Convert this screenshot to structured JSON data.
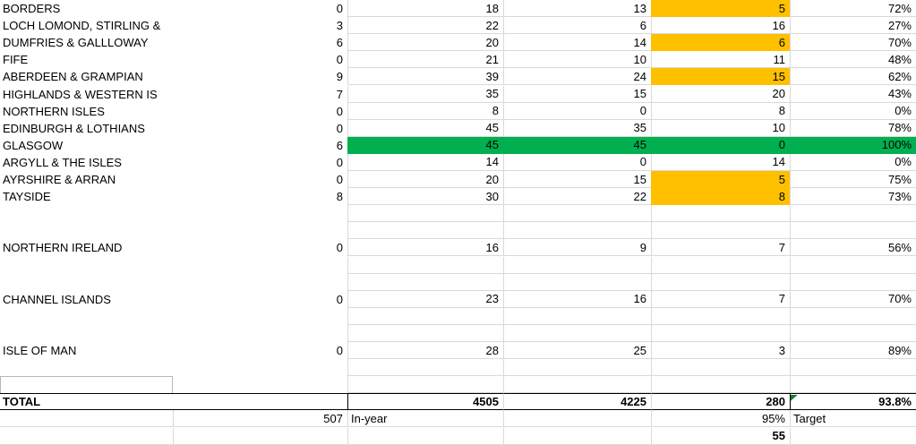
{
  "colors": {
    "orange_fill": "#FFC000",
    "green_fill": "#00B050",
    "triangle_green": "#107C41",
    "gridline": "#d9d9d9"
  },
  "grid": {
    "row_height": 19.1,
    "visible_rows": 26
  },
  "table": {
    "rows": [
      {
        "label": "BORDERS",
        "values": [
          "0",
          "18",
          "13",
          "5",
          "72%"
        ],
        "fills": [
          "",
          "",
          "",
          "orange",
          ""
        ]
      },
      {
        "label": "LOCH LOMOND, STIRLING &",
        "values": [
          "3",
          "22",
          "6",
          "16",
          "27%"
        ],
        "fills": [
          "",
          "",
          "",
          "",
          ""
        ]
      },
      {
        "label": "DUMFRIES & GALLLOWAY",
        "values": [
          "6",
          "20",
          "14",
          "6",
          "70%"
        ],
        "fills": [
          "",
          "",
          "",
          "orange",
          ""
        ]
      },
      {
        "label": "FIFE",
        "values": [
          "0",
          "21",
          "10",
          "11",
          "48%"
        ],
        "fills": [
          "",
          "",
          "",
          "",
          ""
        ]
      },
      {
        "label": "ABERDEEN & GRAMPIAN",
        "values": [
          "9",
          "39",
          "24",
          "15",
          "62%"
        ],
        "fills": [
          "",
          "",
          "",
          "orange",
          ""
        ]
      },
      {
        "label": "HIGHLANDS & WESTERN IS",
        "values": [
          "7",
          "35",
          "15",
          "20",
          "43%"
        ],
        "fills": [
          "",
          "",
          "",
          "",
          ""
        ]
      },
      {
        "label": "NORTHERN ISLES",
        "values": [
          "0",
          "8",
          "0",
          "8",
          "0%"
        ],
        "fills": [
          "",
          "",
          "",
          "",
          ""
        ]
      },
      {
        "label": "EDINBURGH & LOTHIANS",
        "values": [
          "0",
          "45",
          "35",
          "10",
          "78%"
        ],
        "fills": [
          "",
          "",
          "",
          "",
          ""
        ]
      },
      {
        "label": "GLASGOW",
        "values": [
          "6",
          "45",
          "45",
          "0",
          "100%"
        ],
        "fills": [
          "",
          "green",
          "green",
          "green",
          "green"
        ]
      },
      {
        "label": "ARGYLL & THE ISLES",
        "values": [
          "0",
          "14",
          "0",
          "14",
          "0%"
        ],
        "fills": [
          "",
          "",
          "",
          "",
          ""
        ]
      },
      {
        "label": "AYRSHIRE & ARRAN",
        "values": [
          "0",
          "20",
          "15",
          "5",
          "75%"
        ],
        "fills": [
          "",
          "",
          "",
          "orange",
          ""
        ]
      },
      {
        "label": "TAYSIDE",
        "values": [
          "8",
          "30",
          "22",
          "8",
          "73%"
        ],
        "fills": [
          "",
          "",
          "",
          "orange",
          ""
        ]
      },
      {
        "label": "",
        "values": [
          "",
          "",
          "",
          "",
          ""
        ],
        "fills": [
          "",
          "",
          "",
          "",
          ""
        ]
      },
      {
        "label": "",
        "values": [
          "",
          "",
          "",
          "",
          ""
        ],
        "fills": [
          "",
          "",
          "",
          "",
          ""
        ]
      },
      {
        "label": "NORTHERN IRELAND",
        "values": [
          "0",
          "16",
          "9",
          "7",
          "56%"
        ],
        "fills": [
          "",
          "",
          "",
          "",
          ""
        ]
      },
      {
        "label": "",
        "values": [
          "",
          "",
          "",
          "",
          ""
        ],
        "fills": [
          "",
          "",
          "",
          "",
          ""
        ]
      },
      {
        "label": "",
        "values": [
          "",
          "",
          "",
          "",
          ""
        ],
        "fills": [
          "",
          "",
          "",
          "",
          ""
        ]
      },
      {
        "label": "CHANNEL ISLANDS",
        "values": [
          "0",
          "23",
          "16",
          "7",
          "70%"
        ],
        "fills": [
          "",
          "",
          "",
          "",
          ""
        ]
      },
      {
        "label": "",
        "values": [
          "",
          "",
          "",
          "",
          ""
        ],
        "fills": [
          "",
          "",
          "",
          "",
          ""
        ]
      },
      {
        "label": "",
        "values": [
          "",
          "",
          "",
          "",
          ""
        ],
        "fills": [
          "",
          "",
          "",
          "",
          ""
        ]
      },
      {
        "label": "ISLE OF MAN",
        "values": [
          "0",
          "28",
          "25",
          "3",
          "89%"
        ],
        "fills": [
          "",
          "",
          "",
          "",
          ""
        ]
      },
      {
        "label": "",
        "values": [
          "",
          "",
          "",
          "",
          ""
        ],
        "fills": [
          "",
          "",
          "",
          "",
          ""
        ]
      },
      {
        "label": "",
        "values": [
          "",
          "",
          "",
          "",
          ""
        ],
        "fills": [
          "",
          "",
          "",
          "",
          ""
        ]
      }
    ],
    "total_row": {
      "label": "TOTAL",
      "values": [
        "",
        "4505",
        "4225",
        "280",
        "93.8%"
      ]
    }
  },
  "footer": {
    "in_year_value": "507",
    "in_year_label": "In-year",
    "target_value": "95%",
    "target_label": "Target",
    "remaining_value": "55"
  }
}
